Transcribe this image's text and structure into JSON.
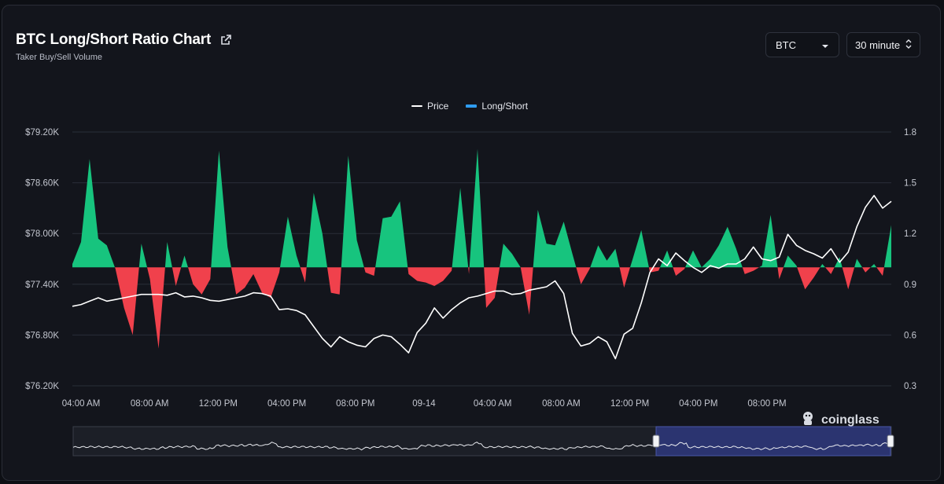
{
  "header": {
    "title": "BTC Long/Short Ratio Chart",
    "subtitle": "Taker Buy/Sell Volume",
    "link_icon": "external-link-icon"
  },
  "controls": {
    "coin_value": "BTC",
    "coin_icon": "caret-down-icon",
    "interval_value": "30 minute",
    "interval_icon": "up-down-chevron-icon"
  },
  "watermark": {
    "text": "coinglass",
    "icon": "coinglass-logo-icon"
  },
  "colors": {
    "up": "#17c47e",
    "down": "#f0414c",
    "price_line": "#ffffff",
    "legend_long_short": "#2f9cf0",
    "grid": "#2a2e38",
    "navigator_selection": "#2b3470"
  },
  "chart_data": {
    "type": "line",
    "legend": [
      "Price",
      "Long/Short"
    ],
    "legend_position": "top-center",
    "grid": true,
    "y_left": {
      "ticks": [
        "$79.20K",
        "$78.60K",
        "$78.00K",
        "$77.40K",
        "$76.80K",
        "$76.20K"
      ],
      "range": [
        76200,
        79200
      ]
    },
    "y_right": {
      "ticks": [
        "1.8",
        "1.5",
        "1.2",
        "0.9",
        "0.6",
        "0.3"
      ],
      "range": [
        0.3,
        1.8
      ],
      "baseline": 1.0
    },
    "x_ticks": [
      "04:00 AM",
      "08:00 AM",
      "12:00 PM",
      "04:00 PM",
      "08:00 PM",
      "09-14",
      "04:00 AM",
      "08:00 AM",
      "12:00 PM",
      "04:00 PM",
      "08:00 PM"
    ],
    "series": [
      {
        "name": "Price",
        "axis": "left",
        "values": [
          77140,
          77160,
          77200,
          77240,
          77200,
          77220,
          77240,
          77260,
          77280,
          77280,
          77280,
          77270,
          77300,
          77250,
          77260,
          77240,
          77210,
          77200,
          77220,
          77240,
          77260,
          77300,
          77290,
          77260,
          77100,
          77110,
          77090,
          77040,
          76900,
          76760,
          76660,
          76780,
          76720,
          76680,
          76660,
          76760,
          76800,
          76780,
          76690,
          76590,
          76830,
          76940,
          77120,
          77000,
          77100,
          77180,
          77240,
          77260,
          77290,
          77320,
          77320,
          77280,
          77290,
          77330,
          77350,
          77370,
          77440,
          77290,
          76820,
          76670,
          76700,
          76780,
          76720,
          76520,
          76810,
          76880,
          77180,
          77540,
          77700,
          77620,
          77770,
          77680,
          77600,
          77540,
          77620,
          77590,
          77640,
          77640,
          77700,
          77840,
          77700,
          77680,
          77720,
          77990,
          77860,
          77800,
          77760,
          77710,
          77820,
          77660,
          77780,
          78080,
          78310,
          78450,
          78300,
          78380
        ]
      },
      {
        "name": "Long/Short",
        "axis": "right",
        "values": [
          1.02,
          1.15,
          1.64,
          1.17,
          1.13,
          0.99,
          0.76,
          0.6,
          1.14,
          0.93,
          0.52,
          1.15,
          0.89,
          1.07,
          0.9,
          0.84,
          0.93,
          1.69,
          1.12,
          0.84,
          0.88,
          0.96,
          0.85,
          0.82,
          0.97,
          1.3,
          1.07,
          0.91,
          1.44,
          1.2,
          0.85,
          0.84,
          1.66,
          1.16,
          0.97,
          0.95,
          1.29,
          1.3,
          1.39,
          0.96,
          0.92,
          0.91,
          0.89,
          0.92,
          0.98,
          1.47,
          0.96,
          1.7,
          0.76,
          0.82,
          1.14,
          1.08,
          1.0,
          0.72,
          1.34,
          1.14,
          1.13,
          1.27,
          1.08,
          0.9,
          0.99,
          1.13,
          1.04,
          1.11,
          0.88,
          1.05,
          1.22,
          0.97,
          0.98,
          1.1,
          0.95,
          0.99,
          1.1,
          1.0,
          1.05,
          1.13,
          1.24,
          1.11,
          0.96,
          0.98,
          1.01,
          1.31,
          0.93,
          1.07,
          1.01,
          0.87,
          0.94,
          1.02,
          0.96,
          1.06,
          0.87,
          1.05,
          0.97,
          1.02,
          0.95,
          1.25
        ]
      }
    ]
  }
}
